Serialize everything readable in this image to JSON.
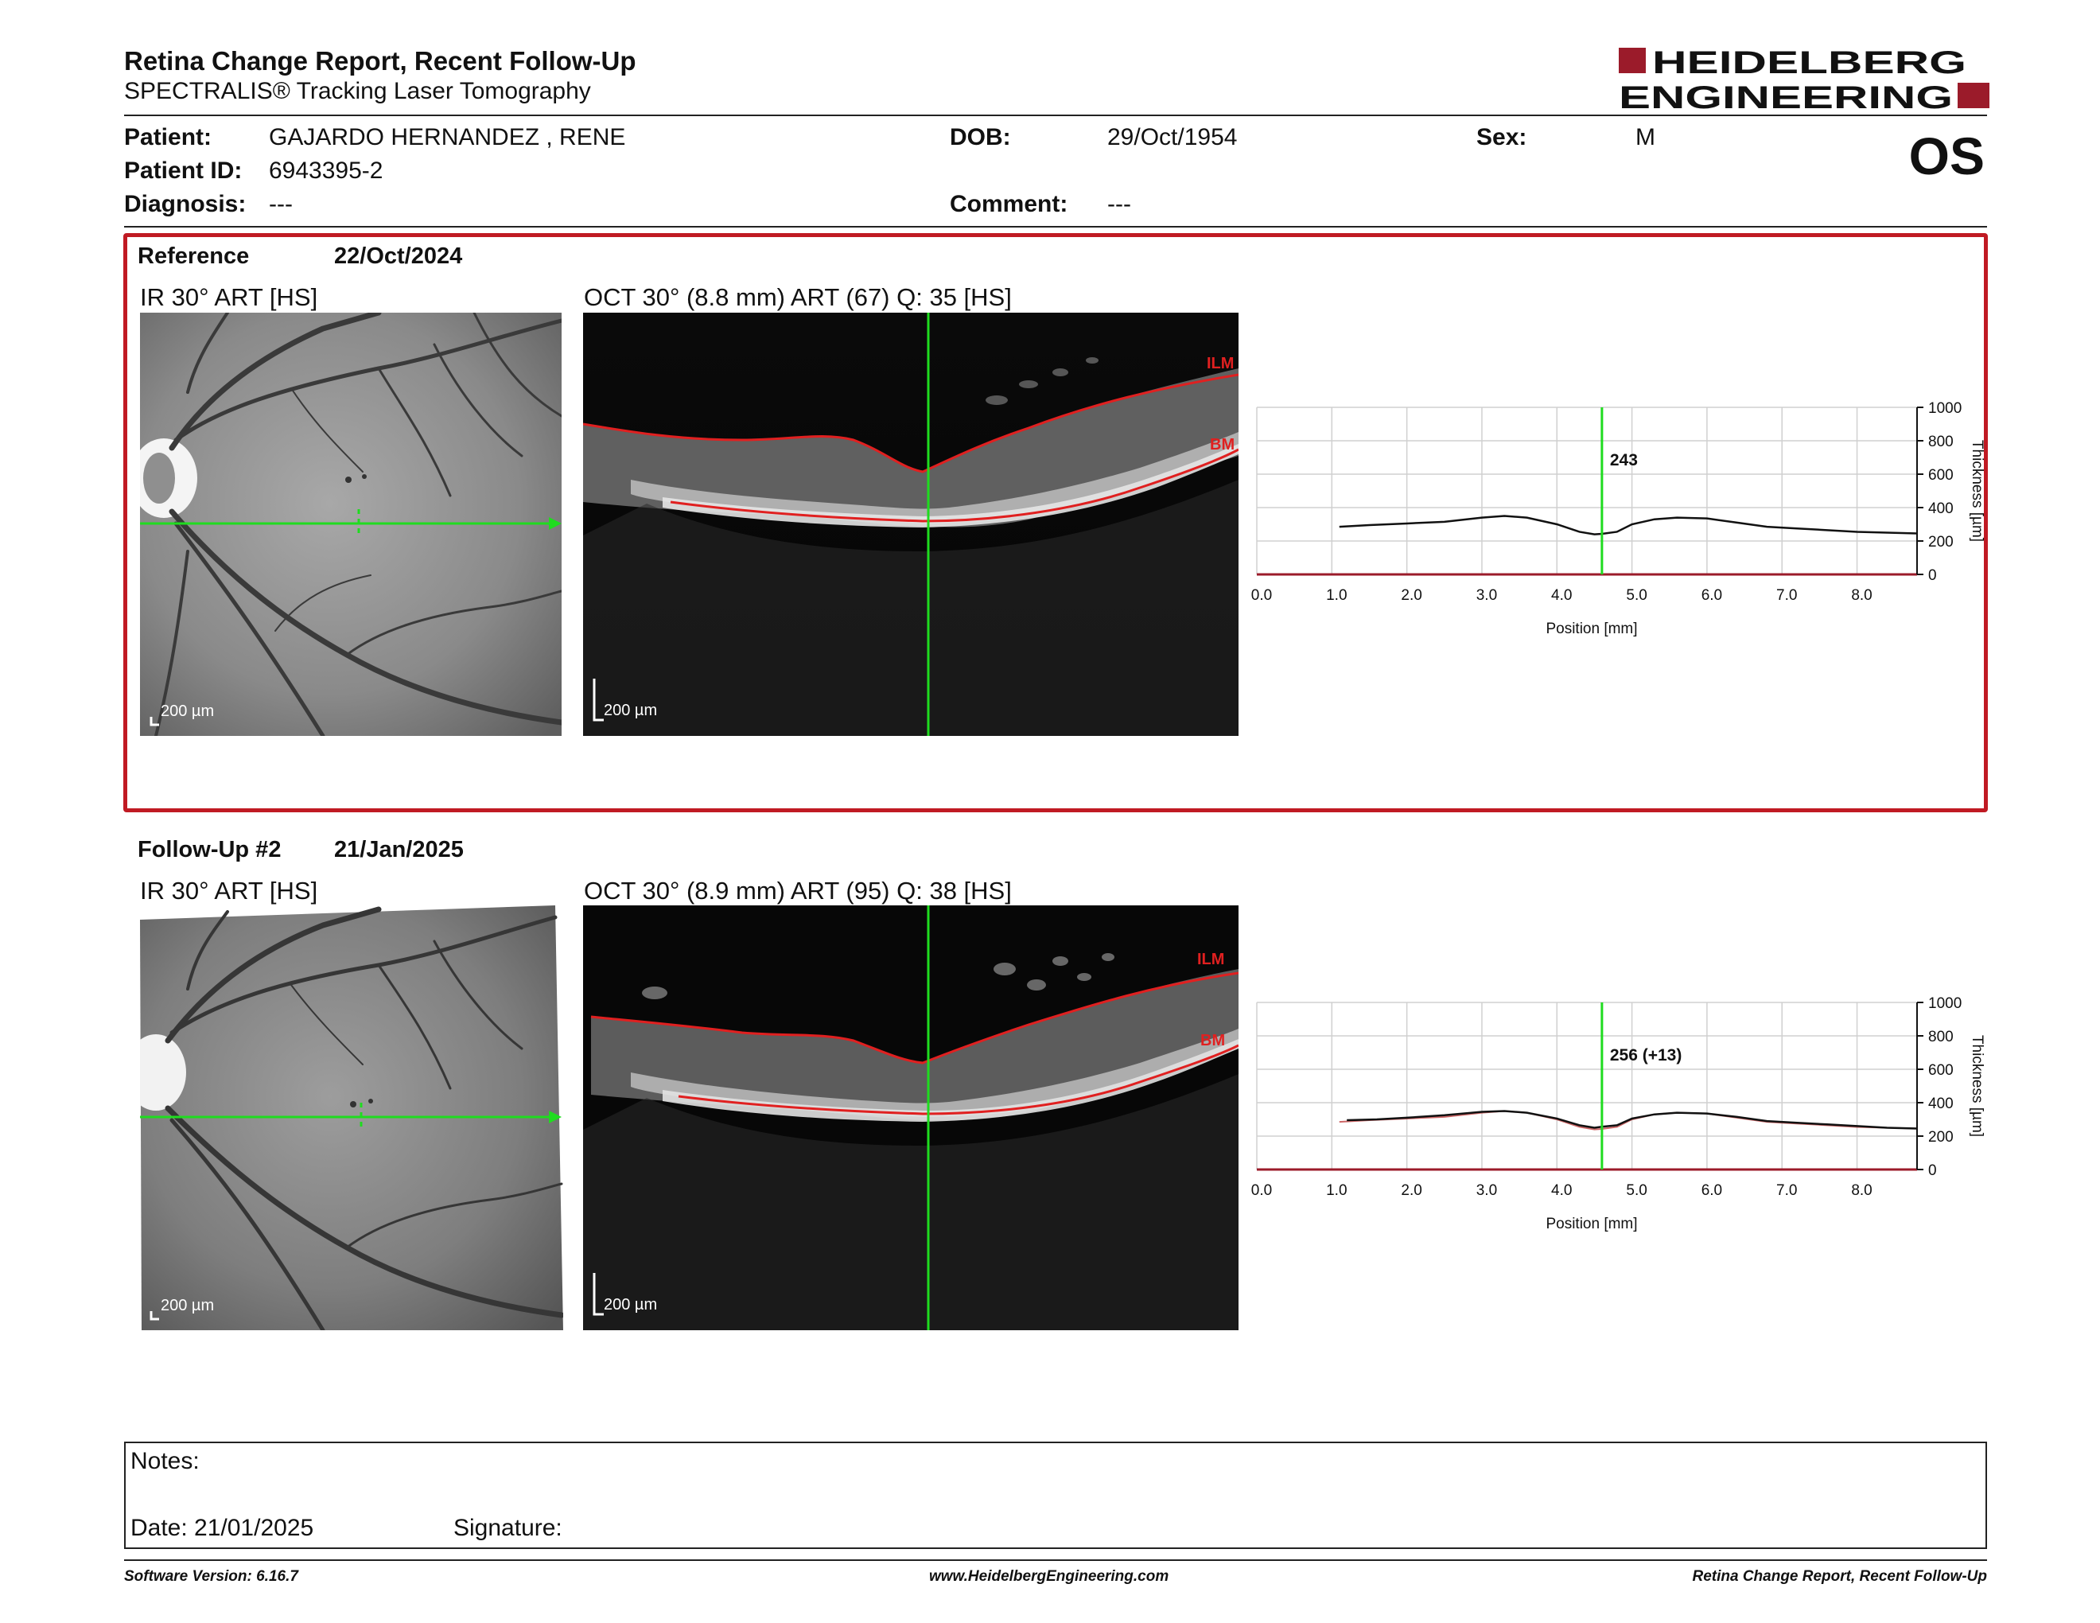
{
  "header": {
    "title": "Retina Change Report, Recent Follow-Up",
    "subtitle": "SPECTRALIS® Tracking Laser Tomography",
    "logo_line1": "HEIDELBERG",
    "logo_line2": "ENGINEERING",
    "eye": "OS"
  },
  "patient": {
    "patient_label": "Patient:",
    "patient_value": "GAJARDO HERNANDEZ , RENE",
    "id_label": "Patient ID:",
    "id_value": "6943395-2",
    "diagnosis_label": "Diagnosis:",
    "diagnosis_value": "---",
    "dob_label": "DOB:",
    "dob_value": "29/Oct/1954",
    "comment_label": "Comment:",
    "comment_value": "---",
    "sex_label": "Sex:",
    "sex_value": "M"
  },
  "reference": {
    "label": "Reference",
    "date": "22/Oct/2024",
    "ir_label": "IR 30° ART [HS]",
    "oct_label": "OCT 30° (8.8 mm) ART (67) Q: 35 [HS]",
    "ir_scale": "200 µm",
    "oct_scale": "200 µm",
    "ilm": "ILM",
    "bm": "BM"
  },
  "followup": {
    "label": "Follow-Up #2",
    "date": "21/Jan/2025",
    "ir_label": "IR 30° ART [HS]",
    "oct_label": "OCT 30° (8.9 mm) ART (95) Q: 38 [HS]",
    "ir_scale": "200 µm",
    "oct_scale": "200 µm",
    "ilm": "ILM",
    "bm": "BM"
  },
  "chart_data": [
    {
      "type": "line",
      "xlabel": "Position [mm]",
      "ylabel": "Thickness [µm]",
      "xlim": [
        0,
        8.8
      ],
      "ylim": [
        0,
        1000
      ],
      "x_ticks": [
        "0.0",
        "1.0",
        "2.0",
        "3.0",
        "4.0",
        "5.0",
        "6.0",
        "7.0",
        "8.0"
      ],
      "y_ticks": [
        "0",
        "200",
        "400",
        "600",
        "800",
        "1000"
      ],
      "cursor_x": 4.6,
      "cursor_label": "243",
      "series": [
        {
          "x": [
            1.1,
            1.5,
            2.0,
            2.5,
            3.0,
            3.3,
            3.6,
            4.0,
            4.3,
            4.5,
            4.6,
            4.8,
            5.0,
            5.3,
            5.6,
            6.0,
            6.4,
            6.8,
            7.2,
            7.6,
            8.0,
            8.4,
            8.8
          ],
          "values": [
            285,
            295,
            305,
            315,
            340,
            350,
            340,
            300,
            255,
            240,
            243,
            255,
            300,
            330,
            340,
            335,
            310,
            285,
            275,
            265,
            255,
            250,
            245
          ]
        }
      ]
    },
    {
      "type": "line",
      "xlabel": "Position [mm]",
      "ylabel": "Thickness [µm]",
      "xlim": [
        0,
        8.8
      ],
      "ylim": [
        0,
        1000
      ],
      "x_ticks": [
        "0.0",
        "1.0",
        "2.0",
        "3.0",
        "4.0",
        "5.0",
        "6.0",
        "7.0",
        "8.0"
      ],
      "y_ticks": [
        "0",
        "200",
        "400",
        "600",
        "800",
        "1000"
      ],
      "cursor_x": 4.6,
      "cursor_label": "256 (+13)",
      "series": [
        {
          "x": [
            1.2,
            1.6,
            2.0,
            2.5,
            3.0,
            3.3,
            3.6,
            4.0,
            4.3,
            4.5,
            4.6,
            4.8,
            5.0,
            5.3,
            5.6,
            6.0,
            6.4,
            6.8,
            7.2,
            7.6,
            8.0,
            8.4,
            8.8
          ],
          "values": [
            295,
            300,
            310,
            325,
            345,
            350,
            340,
            305,
            265,
            250,
            256,
            265,
            305,
            330,
            340,
            335,
            315,
            290,
            280,
            270,
            260,
            250,
            245
          ]
        }
      ]
    }
  ],
  "notes": {
    "notes_label": "Notes:",
    "date_label": "Date: 21/01/2025",
    "signature_label": "Signature:"
  },
  "footer": {
    "left": "Software Version: 6.16.7",
    "center": "www.HeidelbergEngineering.com",
    "right": "Retina Change Report, Recent Follow-Up"
  }
}
